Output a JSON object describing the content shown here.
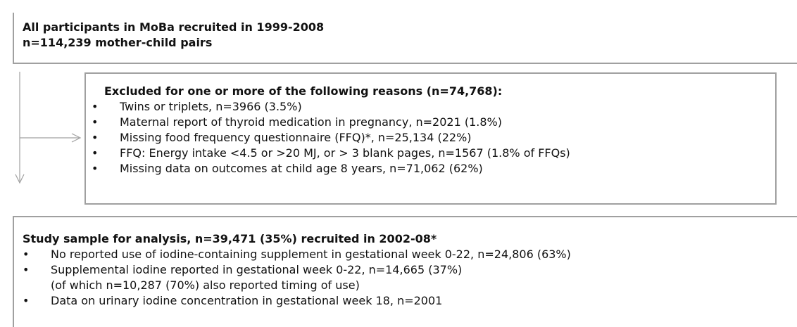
{
  "top": {
    "lines": [
      "All participants in MoBa recruited in 1999-2008",
      "n=114,239 mother-child pairs"
    ]
  },
  "excluded": {
    "title": "Excluded for one or more of the following reasons (n=74,768):",
    "items": [
      "Twins or triplets, n=3966 (3.5%)",
      "Maternal report of thyroid medication in pregnancy, n=2021 (1.8%)",
      "Missing food frequency questionnaire (FFQ)*, n=25,134 (22%)",
      "FFQ: Energy intake <4.5 or >20 MJ, or > 3 blank pages, n=1567 (1.8% of FFQs)",
      "Missing data on outcomes at child age 8 years, n=71,062 (62%)"
    ]
  },
  "sample": {
    "title": "Study sample for analysis, n=39,471 (35%) recruited in 2002-08*",
    "items": [
      [
        "No reported use of iodine-containing supplement in gestational week 0-22, n=24,806 (63%)"
      ],
      [
        "Supplemental iodine reported in gestational week 0-22, n=14,665 (37%)",
        "(of which n=10,287 (70%) also reported timing of use)"
      ],
      [
        "Data on urinary iodine concentration in gestational week 18, n=2001"
      ]
    ]
  }
}
